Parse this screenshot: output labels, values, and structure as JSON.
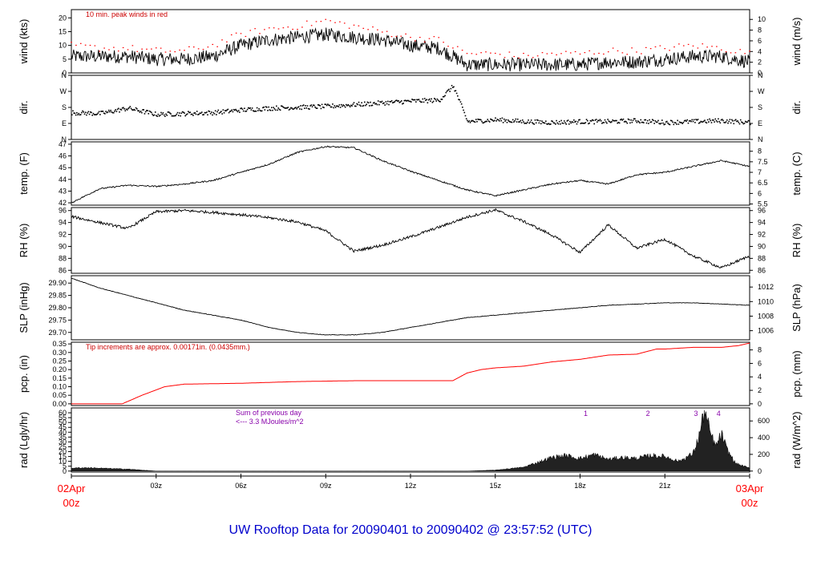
{
  "chart_data": {
    "type": "line",
    "title": "UW Rooftop Data for 20090401  to  20090402 @ 23:57:52  (UTC)",
    "x_range_hours": [
      0,
      24
    ],
    "x_ticks": [
      {
        "h": 0,
        "label": "02Apr",
        "label2": "00z",
        "color": "#ff0000"
      },
      {
        "h": 3,
        "label": "03z"
      },
      {
        "h": 6,
        "label": "06z"
      },
      {
        "h": 9,
        "label": "09z"
      },
      {
        "h": 12,
        "label": "12z"
      },
      {
        "h": 15,
        "label": "15z"
      },
      {
        "h": 18,
        "label": "18z"
      },
      {
        "h": 21,
        "label": "21z"
      },
      {
        "h": 24,
        "label": "03Apr",
        "label2": "00z",
        "color": "#ff0000"
      }
    ],
    "panels": [
      {
        "id": "wind",
        "ylabel_left": "wind (kts)",
        "ylabel_right": "wind (m/s)",
        "ylim": [
          0,
          23
        ],
        "ticks_left": [
          "0",
          "5",
          "10",
          "15",
          "20"
        ],
        "ticks_left_vals": [
          0,
          5,
          10,
          15,
          20
        ],
        "ticks_right": [
          "0",
          "2",
          "4",
          "6",
          "8",
          "10"
        ],
        "ticks_right_vals": [
          0,
          3.89,
          7.78,
          11.66,
          15.55,
          19.44
        ],
        "annotation": "10 min. peak winds in red",
        "series": [
          {
            "name": "wind speed",
            "color": "#000000",
            "x": [
              0,
              1,
              2,
              3,
              4,
              5,
              6,
              7,
              8,
              9,
              10,
              11,
              12,
              13,
              14,
              15,
              16,
              17,
              18,
              19,
              20,
              21,
              22,
              23,
              24
            ],
            "values": [
              6,
              6,
              6,
              5,
              5,
              6,
              10,
              12,
              13,
              14,
              13,
              12,
              10,
              9,
              3,
              3,
              3,
              3,
              3,
              4,
              4,
              5,
              6,
              6,
              4
            ]
          },
          {
            "name": "10 min. peak winds",
            "color": "#ff0000",
            "x": [
              0,
              1,
              2,
              3,
              4,
              5,
              6,
              7,
              8,
              9,
              10,
              11,
              12,
              13,
              14,
              15,
              16,
              17,
              18,
              19,
              20,
              21,
              22,
              23,
              24
            ],
            "values": [
              10,
              9,
              9,
              8,
              8,
              10,
              14,
              16,
              17,
              19,
              17,
              15,
              13,
              12,
              7,
              7,
              6,
              7,
              7,
              8,
              8,
              9,
              10,
              9,
              7
            ]
          }
        ]
      },
      {
        "id": "dir",
        "ylabel_left": "dir.",
        "ylabel_right": "dir.",
        "ylim": [
          0,
          360
        ],
        "ticks_left": [
          "N",
          "E",
          "S",
          "W",
          "N"
        ],
        "ticks_left_vals": [
          0,
          90,
          180,
          270,
          360
        ],
        "ticks_right": [
          "N",
          "E",
          "S",
          "W",
          "N"
        ],
        "ticks_right_vals": [
          0,
          90,
          180,
          270,
          360
        ],
        "series": [
          {
            "name": "wind direction",
            "color": "#000000",
            "style": "dots",
            "x": [
              0,
              1,
              2,
              3,
              4,
              5,
              6,
              7,
              8,
              9,
              10,
              11,
              12,
              13,
              13.5,
              14,
              15,
              16,
              17,
              18,
              19,
              20,
              21,
              22,
              23,
              24
            ],
            "values": [
              150,
              145,
              175,
              140,
              145,
              150,
              165,
              175,
              180,
              185,
              195,
              205,
              215,
              220,
              300,
              100,
              110,
              100,
              95,
              100,
              100,
              105,
              95,
              100,
              105,
              95
            ]
          }
        ]
      },
      {
        "id": "temp",
        "ylabel_left": "temp. (F)",
        "ylabel_right": "temp. (C)",
        "ylim": [
          41.8,
          47.2
        ],
        "ticks_left": [
          "42",
          "43",
          "44",
          "45",
          "46",
          "47"
        ],
        "ticks_left_vals": [
          42,
          43,
          44,
          45,
          46,
          47
        ],
        "ticks_right": [
          "5.5",
          "6",
          "6.5",
          "7",
          "7.5",
          "8"
        ],
        "ticks_right_vals": [
          41.9,
          42.8,
          43.7,
          44.6,
          45.5,
          46.4
        ],
        "series": [
          {
            "name": "temperature",
            "color": "#000000",
            "x": [
              0,
              1,
              2,
              3,
              4,
              5,
              6,
              7,
              8,
              9,
              10,
              11,
              12,
              13,
              14,
              15,
              16,
              17,
              18,
              19,
              20,
              21,
              22,
              23,
              24
            ],
            "values": [
              42.0,
              43.2,
              43.5,
              43.4,
              43.6,
              43.9,
              44.6,
              45.3,
              46.3,
              46.8,
              46.7,
              45.6,
              44.7,
              43.9,
              43.1,
              42.6,
              43.1,
              43.6,
              43.9,
              43.6,
              44.4,
              44.6,
              45.1,
              45.6,
              45.1
            ]
          }
        ]
      },
      {
        "id": "rh",
        "ylabel_left": "RH (%)",
        "ylabel_right": "RH (%)",
        "ylim": [
          85.5,
          96.5
        ],
        "ticks_left": [
          "86",
          "88",
          "90",
          "92",
          "94",
          "96"
        ],
        "ticks_left_vals": [
          86,
          88,
          90,
          92,
          94,
          96
        ],
        "ticks_right": [
          "86",
          "88",
          "90",
          "92",
          "94",
          "96"
        ],
        "ticks_right_vals": [
          86,
          88,
          90,
          92,
          94,
          96
        ],
        "series": [
          {
            "name": "relative humidity",
            "color": "#000000",
            "x": [
              0,
              1,
              2,
              3,
              4,
              5,
              6,
              7,
              8,
              9,
              10,
              11,
              12,
              13,
              14,
              15,
              16,
              17,
              18,
              19,
              20,
              21,
              22,
              23,
              24
            ],
            "values": [
              95,
              94,
              93,
              95.8,
              96,
              95.7,
              95.3,
              94.8,
              94.1,
              92.6,
              89.2,
              90.2,
              91.6,
              93.2,
              94.9,
              96.1,
              94.2,
              91.9,
              89,
              93.6,
              89.7,
              91.2,
              88.4,
              86.4,
              88.4
            ]
          }
        ]
      },
      {
        "id": "slp",
        "ylabel_left": "SLP (inHg)",
        "ylabel_right": "SLP (hPa)",
        "ylim": [
          29.67,
          29.93
        ],
        "ticks_left": [
          "29.70",
          "29.75",
          "29.80",
          "29.85",
          "29.90"
        ],
        "ticks_left_vals": [
          29.7,
          29.75,
          29.8,
          29.85,
          29.9
        ],
        "ticks_right": [
          "1006",
          "1008",
          "1010",
          "1012"
        ],
        "ticks_right_vals": [
          29.707,
          29.766,
          29.825,
          29.884
        ],
        "series": [
          {
            "name": "sea level pressure",
            "color": "#000000",
            "x": [
              0,
              1,
              2,
              3,
              4,
              5,
              6,
              7,
              8,
              9,
              10,
              11,
              12,
              13,
              14,
              15,
              16,
              17,
              18,
              19,
              20,
              21,
              22,
              23,
              24
            ],
            "values": [
              29.92,
              29.88,
              29.85,
              29.82,
              29.79,
              29.77,
              29.75,
              29.72,
              29.7,
              29.69,
              29.69,
              29.7,
              29.72,
              29.74,
              29.76,
              29.77,
              29.78,
              29.79,
              29.8,
              29.81,
              29.815,
              29.82,
              29.82,
              29.815,
              29.81
            ]
          }
        ]
      },
      {
        "id": "pcp",
        "ylabel_left": "pcp. (in)",
        "ylabel_right": "pcp. (mm)",
        "ylim": [
          -0.01,
          0.36
        ],
        "ticks_left": [
          "0.00",
          "0.05",
          "0.10",
          "0.15",
          "0.20",
          "0.25",
          "0.30",
          "0.35"
        ],
        "ticks_left_vals": [
          0,
          0.05,
          0.1,
          0.15,
          0.2,
          0.25,
          0.3,
          0.35
        ],
        "ticks_right": [
          "0",
          "2",
          "4",
          "6",
          "8"
        ],
        "ticks_right_vals": [
          0,
          0.0787,
          0.1575,
          0.2362,
          0.315
        ],
        "annotation": "Tip increments are approx. 0.00171in. (0.0435mm.)",
        "series": [
          {
            "name": "cumulative precipitation",
            "color": "#ff0000",
            "x": [
              0,
              1.8,
              2.5,
              3.3,
              4,
              6,
              8,
              10,
              12,
              13.5,
              14,
              14.5,
              15,
              16,
              17,
              18,
              19,
              20,
              20.7,
              21,
              22,
              23,
              23.6,
              24
            ],
            "values": [
              0,
              0,
              0.05,
              0.1,
              0.115,
              0.12,
              0.13,
              0.135,
              0.135,
              0.135,
              0.18,
              0.2,
              0.21,
              0.22,
              0.245,
              0.26,
              0.285,
              0.29,
              0.32,
              0.32,
              0.33,
              0.33,
              0.34,
              0.355
            ]
          }
        ]
      },
      {
        "id": "rad",
        "ylabel_left": "rad (Lgly/hr)",
        "ylabel_right": "rad (W/m^2)",
        "ylim": [
          -1,
          65
        ],
        "ticks_left": [
          "0",
          "5",
          "10",
          "15",
          "20",
          "25",
          "30",
          "35",
          "40",
          "45",
          "50",
          "55",
          "60"
        ],
        "ticks_left_vals": [
          0,
          5,
          10,
          15,
          20,
          25,
          30,
          35,
          40,
          45,
          50,
          55,
          60
        ],
        "ticks_right": [
          "0",
          "200",
          "400",
          "600"
        ],
        "ticks_right_vals": [
          0,
          17.2,
          34.4,
          51.6
        ],
        "annotation_line1": "Sum of previous day",
        "annotation_line2": "<--- 3.3 MJoules/m^2",
        "markers": [
          {
            "h": 18.2,
            "label": "1"
          },
          {
            "h": 20.4,
            "label": "2"
          },
          {
            "h": 22.1,
            "label": "3"
          },
          {
            "h": 22.9,
            "label": "4"
          }
        ],
        "series": [
          {
            "name": "solar radiation",
            "color": "#000000",
            "style": "area",
            "x": [
              0,
              0.5,
              1,
              1.5,
              2,
              2.5,
              3,
              14,
              15,
              16,
              16.5,
              17,
              17.5,
              18,
              18.5,
              19,
              19.5,
              20,
              20.5,
              21,
              21.5,
              22,
              22.2,
              22.4,
              22.6,
              22.8,
              23,
              23.2,
              23.5,
              24
            ],
            "values": [
              3,
              3.5,
              3,
              2.5,
              2,
              1,
              0,
              0,
              1,
              4,
              9,
              14,
              16,
              13,
              17,
              12,
              14,
              13,
              16,
              15,
              10,
              18,
              35,
              62,
              40,
              25,
              38,
              22,
              8,
              3
            ]
          }
        ]
      }
    ]
  }
}
